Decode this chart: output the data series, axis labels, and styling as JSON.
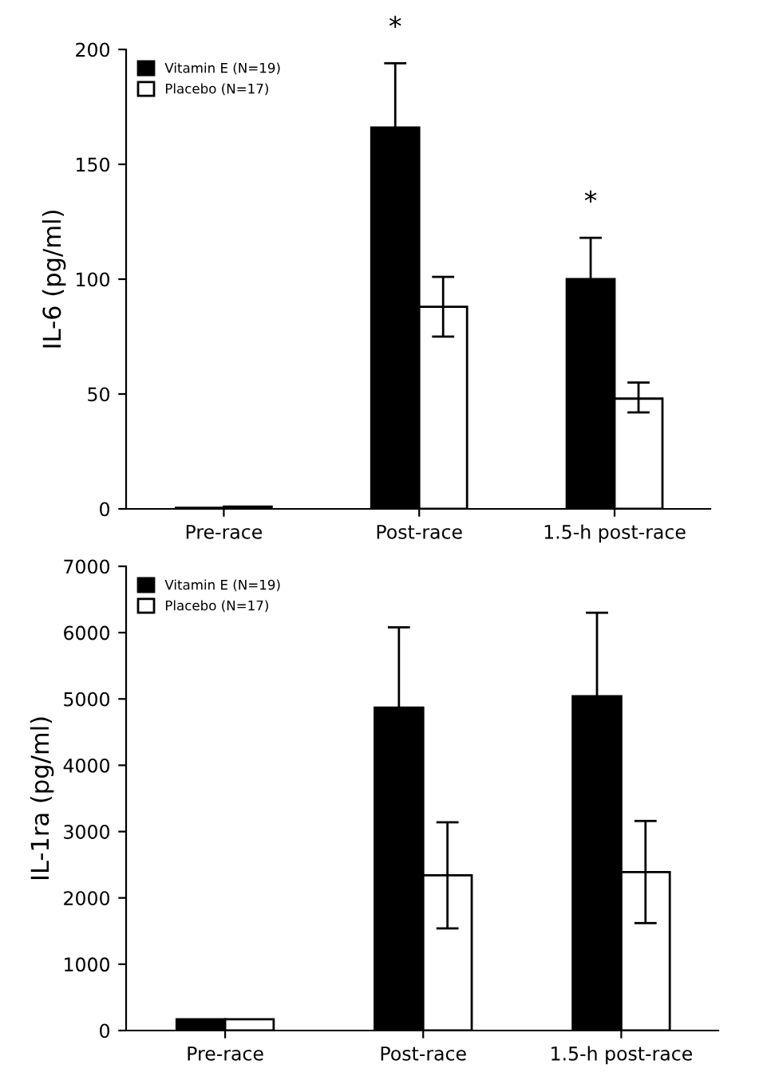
{
  "chart_data": [
    {
      "type": "bar",
      "ylabel": "IL-6 (pg/ml)",
      "categories": [
        "Pre-race",
        "Post-race",
        "1.5-h post-race"
      ],
      "series": [
        {
          "name": "Vitamin E (N=19)",
          "color": "#000000",
          "values": [
            0.5,
            166,
            100
          ],
          "errors": [
            null,
            28,
            18
          ]
        },
        {
          "name": "Placebo (N=17)",
          "color": "#ffffff",
          "values": [
            1,
            88,
            48
          ],
          "errors": [
            null,
            [
              75,
              101
            ],
            [
              42,
              55
            ]
          ]
        }
      ],
      "ylim": [
        0,
        200
      ],
      "yticks": [
        0,
        50,
        100,
        150,
        200
      ],
      "legend": "top left",
      "grid": false,
      "annotations": [
        "*",
        "*"
      ]
    },
    {
      "type": "bar",
      "ylabel": "IL-1ra (pg/ml)",
      "categories": [
        "Pre-race",
        "Post-race",
        "1.5-h post-race"
      ],
      "series": [
        {
          "name": "Vitamin E (N=19)",
          "color": "#000000",
          "values": [
            170,
            4870,
            5040
          ],
          "errors": [
            null,
            1210,
            1260
          ]
        },
        {
          "name": "Placebo (N=17)",
          "color": "#ffffff",
          "values": [
            170,
            2340,
            2390
          ],
          "errors": [
            null,
            [
              1540,
              3140
            ],
            [
              1620,
              3160
            ]
          ]
        }
      ],
      "ylim": [
        0,
        7000
      ],
      "yticks": [
        0,
        1000,
        2000,
        3000,
        4000,
        5000,
        6000,
        7000
      ],
      "legend": "top left",
      "grid": false
    }
  ]
}
